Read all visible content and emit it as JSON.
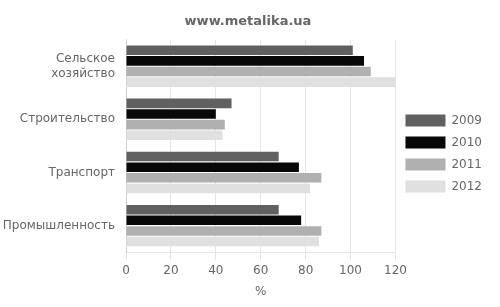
{
  "chart_data": {
    "type": "bar",
    "orientation": "horizontal",
    "title": "www.metalika.ua",
    "categories": [
      "Сельское\nхозяйство",
      "Строительство",
      "Транспорт",
      "Промышленность"
    ],
    "series": [
      {
        "name": "2009",
        "color": "#606060",
        "values": [
          101,
          47,
          68,
          68
        ]
      },
      {
        "name": "2010",
        "color": "#080808",
        "values": [
          106,
          40,
          77,
          78
        ]
      },
      {
        "name": "2011",
        "color": "#b0b0b0",
        "values": [
          109,
          44,
          87,
          87
        ]
      },
      {
        "name": "2012",
        "color": "#e0e0e0",
        "values": [
          120,
          43,
          82,
          86
        ]
      }
    ],
    "xlabel": "%",
    "xlim": [
      0,
      120
    ],
    "xticks": [
      0,
      20,
      40,
      60,
      80,
      100,
      120
    ],
    "grid": true,
    "legend": "right"
  }
}
